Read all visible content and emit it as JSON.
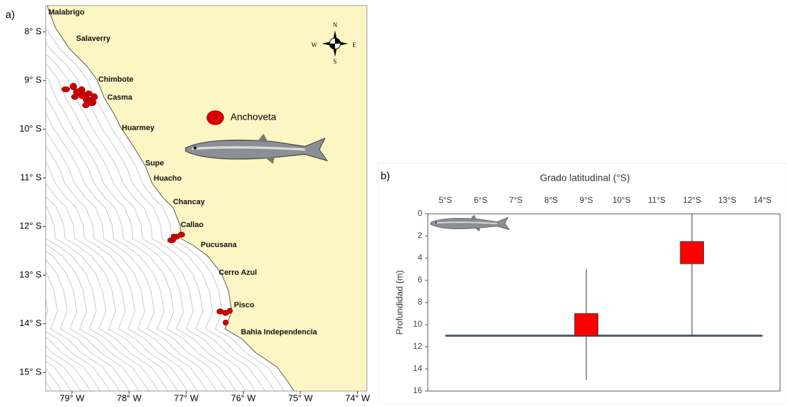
{
  "map": {
    "panel_label": "a)",
    "lat_ticks": [
      {
        "value": 8,
        "label": "8° S"
      },
      {
        "value": 9,
        "label": "9° S"
      },
      {
        "value": 10,
        "label": "10° S"
      },
      {
        "value": 11,
        "label": "11° S"
      },
      {
        "value": 12,
        "label": "12° S"
      },
      {
        "value": 13,
        "label": "13° S"
      },
      {
        "value": 14,
        "label": "14° S"
      },
      {
        "value": 15,
        "label": "15° S"
      }
    ],
    "lon_ticks": [
      {
        "value": 79,
        "label": "79° W"
      },
      {
        "value": 78,
        "label": "78° W"
      },
      {
        "value": 77,
        "label": "77° W"
      },
      {
        "value": 76,
        "label": "76° W"
      },
      {
        "value": 75,
        "label": "75° W"
      },
      {
        "value": 74,
        "label": "74° W"
      }
    ],
    "places": [
      "Malabrigo",
      "Salaverry",
      "Chimbote",
      "Casma",
      "Huarmey",
      "Supe",
      "Huacho",
      "Chancay",
      "Callao",
      "Pucusana",
      "Cerro Azul",
      "Pisco",
      "Bahia Independencia"
    ],
    "legend": "Anchoveta",
    "compass": {
      "n": "N",
      "s": "S",
      "e": "E",
      "w": "W"
    }
  },
  "chart_data": {
    "type": "box",
    "panel_label": "b)",
    "title": "Grado latitudinal (°S)",
    "y_label": "Profundidad (m)",
    "categories": [
      "5°S",
      "6°S",
      "7°S",
      "8°S",
      "9°S",
      "10°S",
      "11°S",
      "12°S",
      "13°S",
      "14°S"
    ],
    "ylim": [
      0,
      16
    ],
    "y_inverted": true,
    "yticks": [
      0,
      2,
      4,
      6,
      8,
      10,
      12,
      14,
      16
    ],
    "color": "#ff0000",
    "boxes": [
      {
        "x": "9°S",
        "min": 5,
        "box_top": 9,
        "box_bottom": 11,
        "max": 15
      },
      {
        "x": "12°S",
        "min": 0,
        "box_top": 2.5,
        "box_bottom": 4.5,
        "max": 11
      }
    ],
    "reference_line": {
      "value": 11,
      "color": "#44546a"
    }
  }
}
